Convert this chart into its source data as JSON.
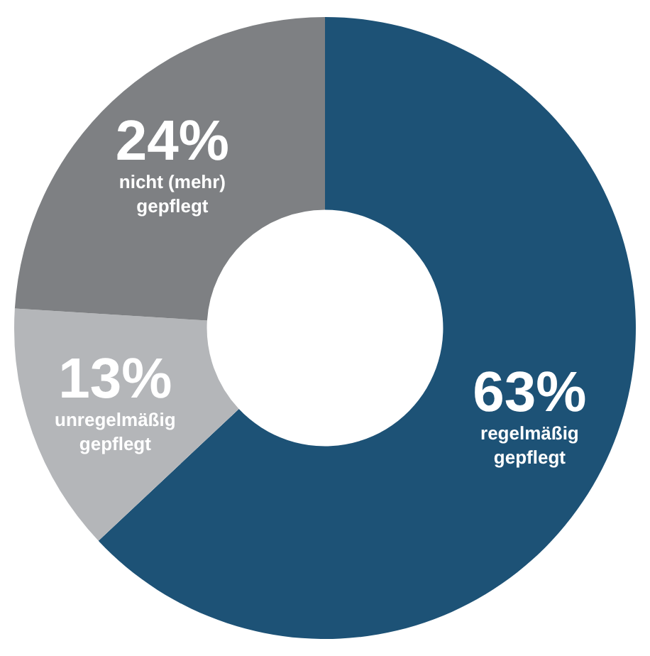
{
  "chart_data": {
    "type": "donut",
    "categories": [
      "regelmäßig gepflegt",
      "unregelmäßig gepflegt",
      "nicht (mehr) gepflegt"
    ],
    "values": [
      63,
      13,
      24
    ],
    "colors": [
      "#1d5276",
      "#b4b6b9",
      "#7e8083"
    ],
    "value_labels": [
      "63%",
      "13%",
      "24%"
    ],
    "legend": false
  }
}
